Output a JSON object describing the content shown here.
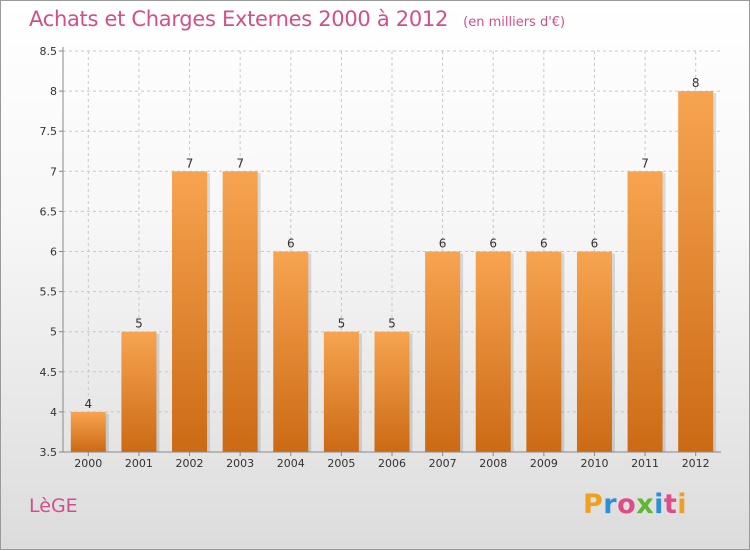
{
  "header": {
    "title": "Achats et Charges Externes 2000 à 2012",
    "subtitle": "(en milliers d'€)"
  },
  "footer": {
    "commune": "LèGE",
    "logo": [
      "P",
      "r",
      "o",
      "x",
      "i",
      "t",
      "i"
    ],
    "logo_colors": [
      "#f0a020",
      "#2e8fd8",
      "#e04c88",
      "#5cb830",
      "#2e8fd8",
      "#e04c88",
      "#f0a020"
    ]
  },
  "chart_data": {
    "type": "bar",
    "categories": [
      "2000",
      "2001",
      "2002",
      "2003",
      "2004",
      "2005",
      "2006",
      "2007",
      "2008",
      "2009",
      "2010",
      "2011",
      "2012"
    ],
    "values": [
      4,
      5,
      7,
      7,
      6,
      5,
      5,
      6,
      6,
      6,
      6,
      7,
      8
    ],
    "value_labels": [
      "4",
      "5",
      "7",
      "7",
      "6",
      "5",
      "5",
      "6",
      "6",
      "6",
      "6",
      "7",
      "8"
    ],
    "title": "Achats et Charges Externes 2000 à 2012",
    "xlabel": "",
    "ylabel": "",
    "ylim": [
      3.5,
      8.5
    ],
    "yticks": [
      "3.5",
      "4",
      "4.5",
      "5",
      "5.5",
      "6",
      "6.5",
      "7",
      "7.5",
      "8",
      "8.5"
    ],
    "grid": true,
    "colors": {
      "bar_top": "#f7a450",
      "bar_bottom": "#cc6a14",
      "grid": "#c8c8c8",
      "axis": "#888888",
      "text": "#333333"
    }
  }
}
